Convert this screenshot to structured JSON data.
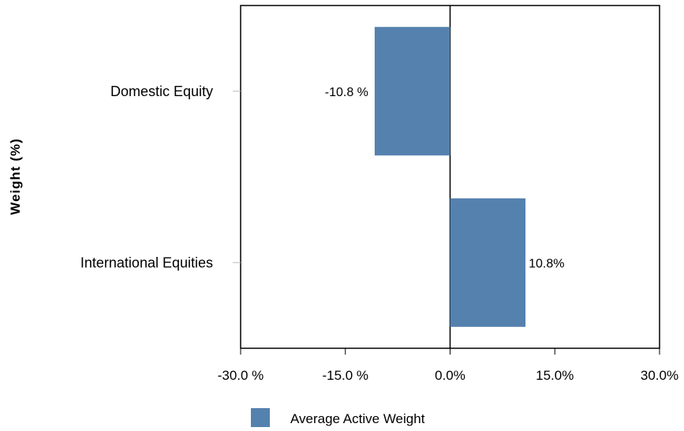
{
  "chart_data": {
    "type": "bar",
    "orientation": "horizontal",
    "categories": [
      "Domestic Equity",
      "International Equities"
    ],
    "series": [
      {
        "name": "Average Active Weight",
        "values": [
          -10.8,
          10.8
        ],
        "color": "#5581ae"
      }
    ],
    "data_labels": [
      "-10.8 %",
      "10.8%"
    ],
    "xlim": [
      -30,
      30
    ],
    "x_ticks": [
      -30,
      -15,
      0,
      15,
      30
    ],
    "x_tick_labels": [
      "-30.0 %",
      "-15.0 %",
      "0.0%",
      "15.0%",
      "30.0%"
    ],
    "ylabel": "Weight (%)",
    "xlabel": "",
    "grid": false,
    "legend_position": "bottom"
  }
}
